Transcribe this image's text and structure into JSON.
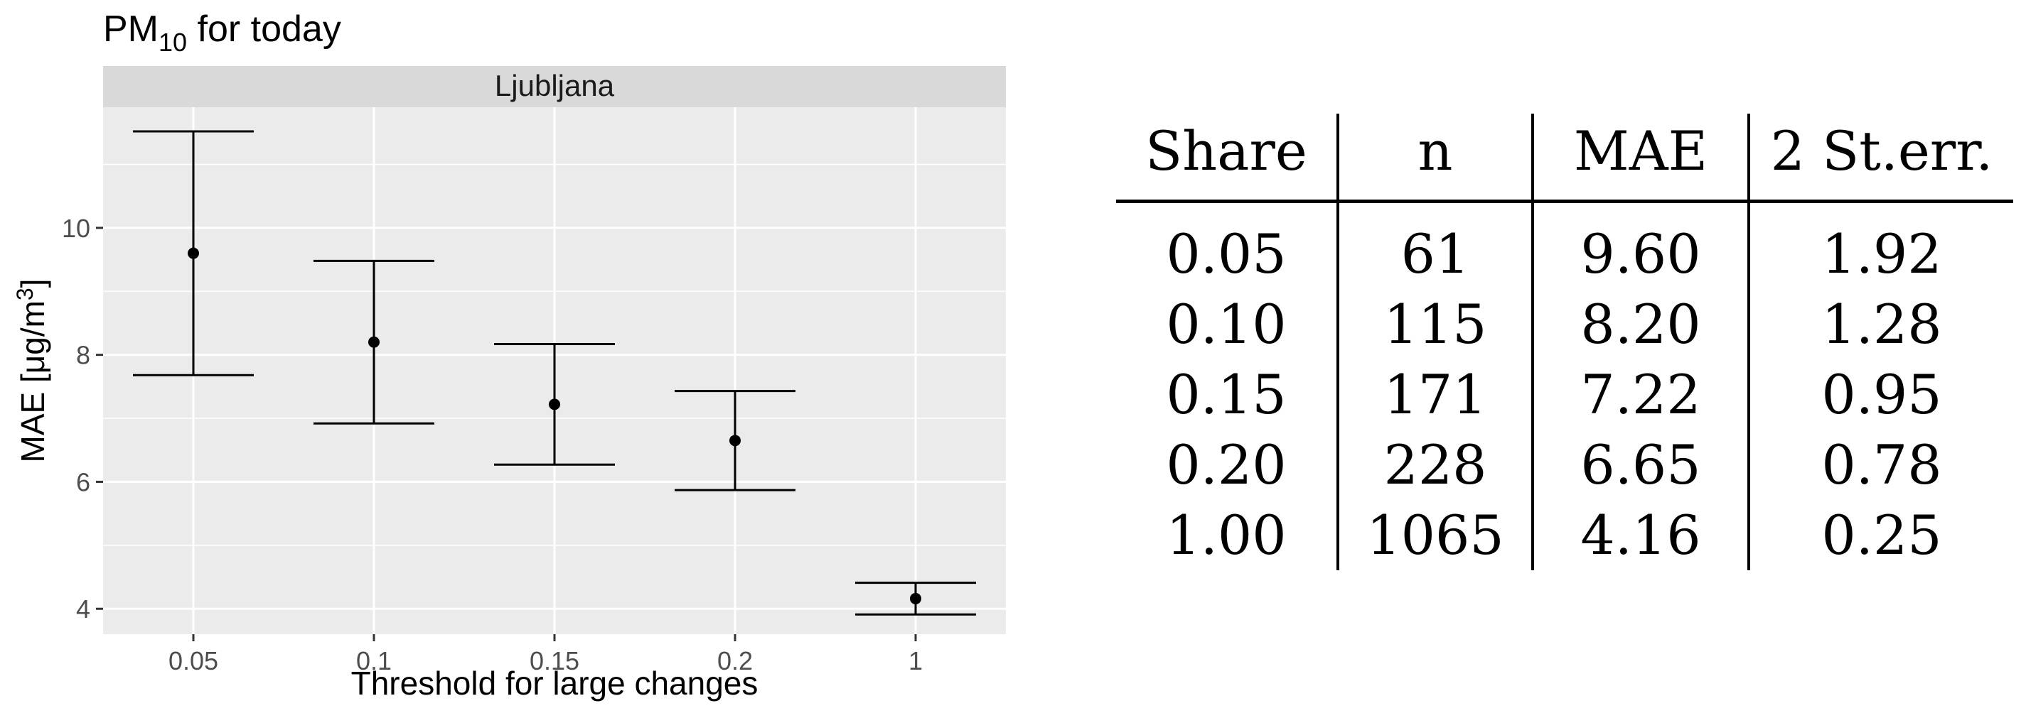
{
  "chart_data": {
    "type": "scatter",
    "title_main": "PM",
    "title_sub": "10",
    "title_rest": " for today",
    "facet_label": "Ljubljana",
    "xlabel": "Threshold for large changes",
    "ylabel": "MAE [μg/m",
    "ylabel_sup": "3",
    "ylabel_close": "]",
    "categories": [
      "0.05",
      "0.1",
      "0.15",
      "0.2",
      "1"
    ],
    "values": [
      9.6,
      8.2,
      7.22,
      6.65,
      4.16
    ],
    "error_low": [
      7.68,
      6.92,
      6.27,
      5.87,
      3.91
    ],
    "error_high": [
      11.52,
      9.48,
      8.17,
      7.43,
      4.41
    ],
    "yticks": [
      4,
      6,
      8,
      10
    ],
    "ylim": [
      3.6,
      11.9
    ],
    "grid": true
  },
  "table": {
    "headers": [
      "Share",
      "n",
      "MAE",
      "2 St.err."
    ],
    "rows": [
      [
        "0.05",
        "61",
        "9.60",
        "1.92"
      ],
      [
        "0.10",
        "115",
        "8.20",
        "1.28"
      ],
      [
        "0.15",
        "171",
        "7.22",
        "0.95"
      ],
      [
        "0.20",
        "228",
        "6.65",
        "0.78"
      ],
      [
        "1.00",
        "1065",
        "4.16",
        "0.25"
      ]
    ]
  }
}
